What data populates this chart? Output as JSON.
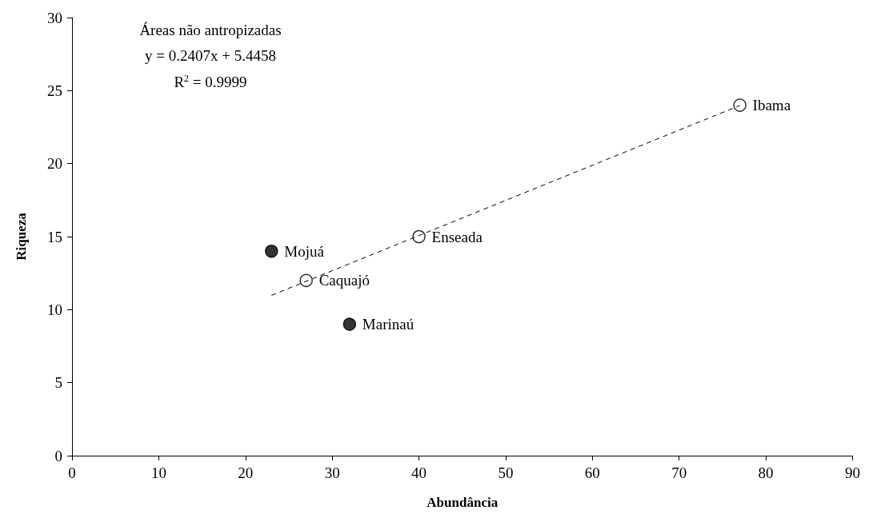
{
  "chart_data": {
    "type": "scatter",
    "xlabel": "Abundância",
    "ylabel": "Riqueza",
    "xlim": [
      0,
      90
    ],
    "xticks": [
      0,
      10,
      20,
      30,
      40,
      50,
      60,
      70,
      80,
      90
    ],
    "ylim": [
      0,
      30
    ],
    "yticks": [
      0,
      5,
      10,
      15,
      20,
      25,
      30
    ],
    "grid": false,
    "marker": "circle",
    "series": [
      {
        "color": "#ffffff",
        "x": [
          27,
          40,
          77
        ],
        "values": [
          12,
          15,
          24
        ]
      },
      {
        "color": "#000000",
        "x": [
          23,
          32
        ],
        "values": [
          14,
          9
        ]
      },
      {
        "type": "line",
        "color": "#000000",
        "line_style": "dashed",
        "marker": "none",
        "x": [
          23,
          77
        ],
        "values": [
          10.98,
          23.98
        ]
      }
    ],
    "annotations": [
      "Áreas não antropizadas",
      "y = 0.2407x + 5.4458",
      "R$^{2}$ = 0.9999",
      {
        "text": "Caquajó",
        "x": 27,
        "y": 12
      },
      {
        "text": "Enseada",
        "x": 40,
        "y": 15
      },
      {
        "text": "Ibama",
        "x": 77,
        "y": 24
      },
      {
        "text": "Mojuá",
        "x": 23,
        "y": 14
      },
      {
        "text": "Marinaú",
        "x": 32,
        "y": 9
      }
    ]
  }
}
